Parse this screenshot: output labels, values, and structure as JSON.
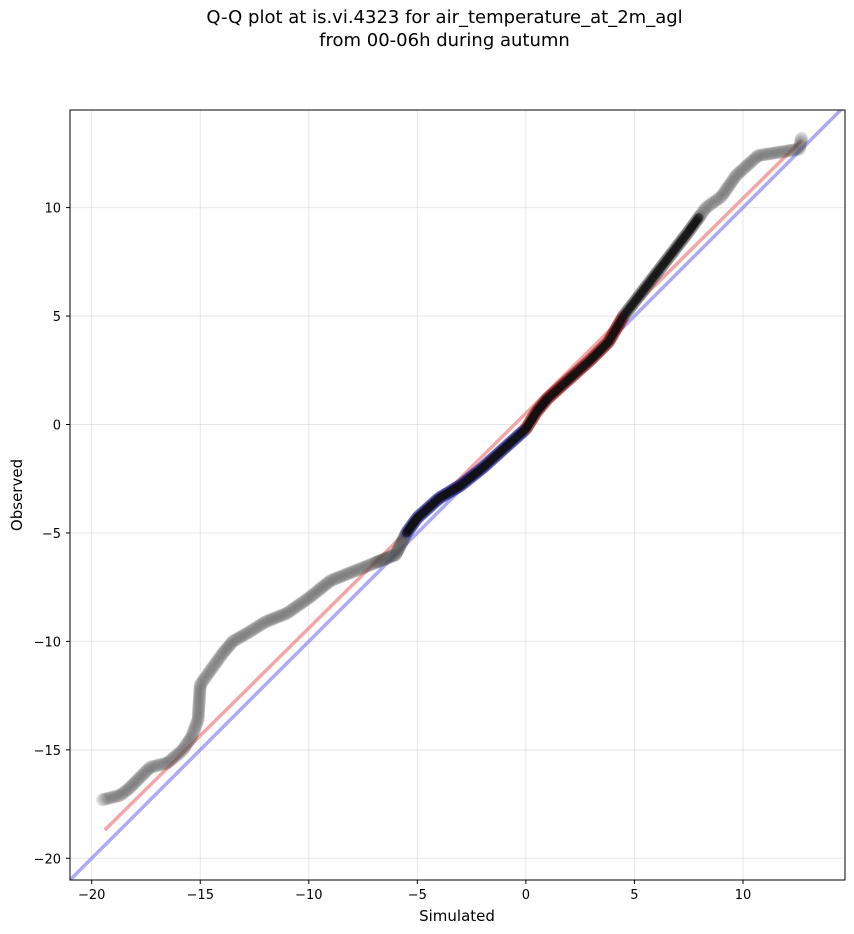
{
  "chart_data": {
    "type": "scatter",
    "title_lines": [
      "Q-Q plot at is.vi.4323 for air_temperature_at_2m_agl",
      "from 00-06h during autumn"
    ],
    "xlabel": "Simulated",
    "ylabel": "Observed",
    "xlim": [
      -21,
      14.7
    ],
    "ylim": [
      -21,
      14.5
    ],
    "xticks": [
      -20,
      -15,
      -10,
      -5,
      0,
      5,
      10
    ],
    "yticks": [
      -20,
      -15,
      -10,
      -5,
      0,
      5,
      10
    ],
    "tick_labels_x": [
      "−20",
      "−15",
      "−10",
      "−5",
      "0",
      "5",
      "10"
    ],
    "tick_labels_y": [
      "−20",
      "−15",
      "−10",
      "−5",
      "0",
      "5",
      "10"
    ],
    "grid": true,
    "colors": {
      "outer_points": "#505050",
      "lower_core": "#1a1a8c",
      "upper_core": "#8c1010",
      "fit_line": "#f08080",
      "identity_line": "#8080f0"
    },
    "identity_line": {
      "from": [
        -21,
        -21
      ],
      "to": [
        14.7,
        14.7
      ]
    },
    "fit_line": {
      "from": [
        -19.4,
        -18.7
      ],
      "to": [
        12.7,
        13.1
      ]
    },
    "quantile_curve": [
      [
        -19.5,
        -17.3
      ],
      [
        -18.7,
        -17.1
      ],
      [
        -18.3,
        -16.8
      ],
      [
        -17.3,
        -15.8
      ],
      [
        -16.5,
        -15.6
      ],
      [
        -15.8,
        -15.0
      ],
      [
        -15.4,
        -14.4
      ],
      [
        -15.1,
        -13.6
      ],
      [
        -15.0,
        -12.0
      ],
      [
        -14.5,
        -11.3
      ],
      [
        -14.0,
        -10.6
      ],
      [
        -13.5,
        -10.0
      ],
      [
        -12.8,
        -9.6
      ],
      [
        -12.0,
        -9.1
      ],
      [
        -11.0,
        -8.7
      ],
      [
        -10.0,
        -8.0
      ],
      [
        -9.0,
        -7.2
      ],
      [
        -8.0,
        -6.8
      ],
      [
        -7.0,
        -6.4
      ],
      [
        -6.0,
        -6.0
      ],
      [
        -5.5,
        -5.0
      ],
      [
        -5.0,
        -4.3
      ],
      [
        -4.0,
        -3.4
      ],
      [
        -3.0,
        -2.8
      ],
      [
        -2.0,
        -2.0
      ],
      [
        -1.0,
        -1.1
      ],
      [
        0.0,
        -0.2
      ],
      [
        0.5,
        0.6
      ],
      [
        1.0,
        1.2
      ],
      [
        2.0,
        2.1
      ],
      [
        3.0,
        3.0
      ],
      [
        3.8,
        3.8
      ],
      [
        4.5,
        5.0
      ],
      [
        5.5,
        6.3
      ],
      [
        6.5,
        7.6
      ],
      [
        7.5,
        8.9
      ],
      [
        8.3,
        10.0
      ],
      [
        9.0,
        10.5
      ],
      [
        9.7,
        11.5
      ],
      [
        10.7,
        12.4
      ],
      [
        12.6,
        12.7
      ],
      [
        12.7,
        13.2
      ]
    ],
    "core_lower_range": [
      -5.5,
      0.0
    ],
    "core_upper_range": [
      0.0,
      4.5
    ]
  }
}
